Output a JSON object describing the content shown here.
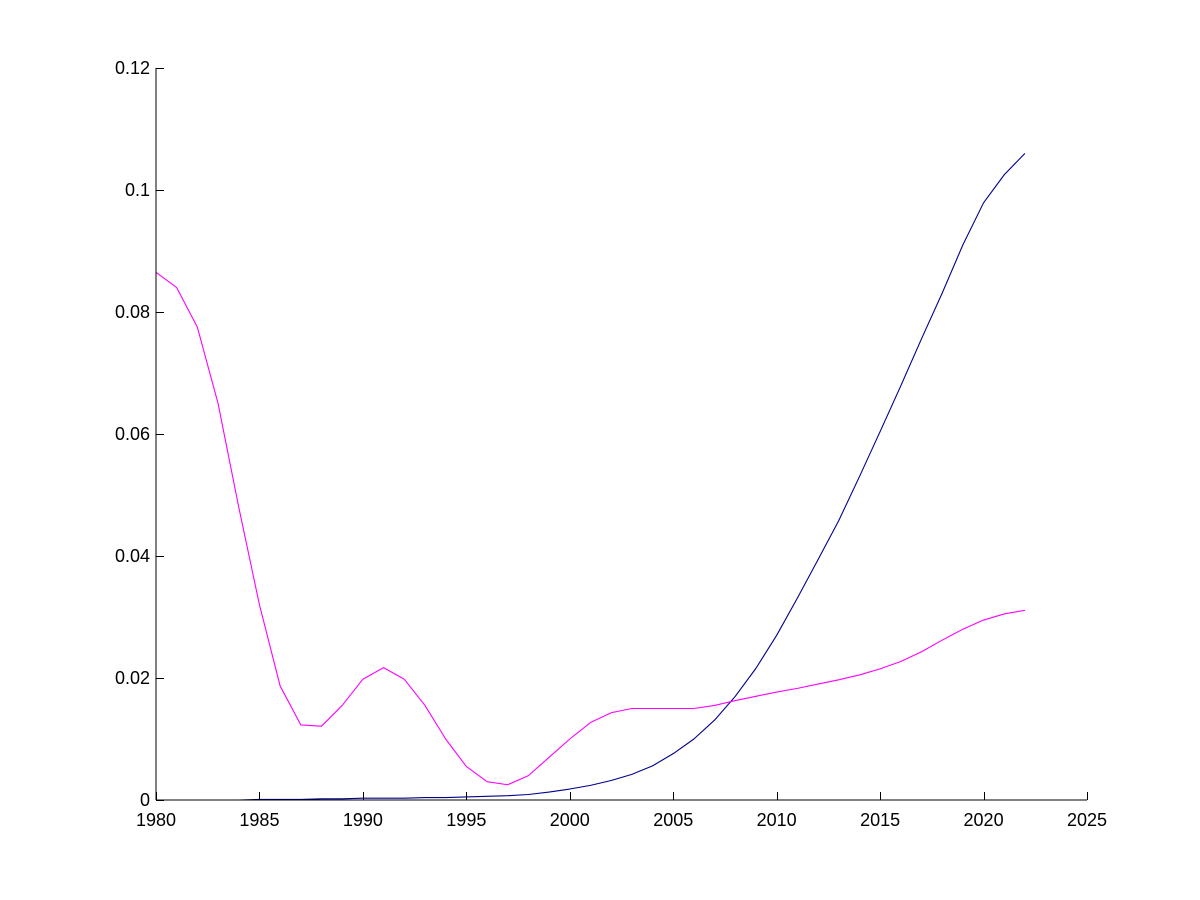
{
  "chart_data": {
    "type": "line",
    "title": "",
    "xlabel": "",
    "ylabel": "",
    "xlim": [
      1980,
      2025
    ],
    "ylim": [
      0,
      0.12
    ],
    "grid": false,
    "legend": "none",
    "x_ticks": [
      "1980",
      "1985",
      "1990",
      "1995",
      "2000",
      "2005",
      "2010",
      "2015",
      "2020",
      "2025"
    ],
    "y_ticks": [
      "0",
      "0.02",
      "0.04",
      "0.06",
      "0.08",
      "0.1",
      "0.12"
    ],
    "x_tick_values": [
      1980,
      1985,
      1990,
      1995,
      2000,
      2005,
      2010,
      2015,
      2020,
      2025
    ],
    "y_tick_values": [
      0,
      0.02,
      0.04,
      0.06,
      0.08,
      0.1,
      0.12
    ],
    "x": [
      1980,
      1981,
      1982,
      1983,
      1984,
      1985,
      1986,
      1987,
      1988,
      1989,
      1990,
      1991,
      1992,
      1993,
      1994,
      1995,
      1996,
      1997,
      1998,
      1999,
      2000,
      2001,
      2002,
      2003,
      2004,
      2005,
      2006,
      2007,
      2008,
      2009,
      2010,
      2011,
      2012,
      2013,
      2014,
      2015,
      2016,
      2017,
      2018,
      2019,
      2020,
      2021,
      2022
    ],
    "series": [
      {
        "color": "#00008b",
        "values": [
          0.0,
          0.0,
          0.0,
          0.0,
          0.0,
          0.0001,
          0.0001,
          0.0001,
          0.0002,
          0.0002,
          0.0003,
          0.0003,
          0.0003,
          0.0004,
          0.0004,
          0.0005,
          0.0006,
          0.0007,
          0.0009,
          0.0013,
          0.0018,
          0.0024,
          0.0032,
          0.0042,
          0.0056,
          0.0076,
          0.01,
          0.0131,
          0.017,
          0.0216,
          0.027,
          0.0331,
          0.0394,
          0.0458,
          0.053,
          0.0604,
          0.0679,
          0.0756,
          0.0831,
          0.091,
          0.0979,
          0.1025,
          0.106
        ]
      },
      {
        "color": "#ff00ff",
        "values": [
          0.0865,
          0.084,
          0.0775,
          0.065,
          0.048,
          0.032,
          0.0187,
          0.0123,
          0.0121,
          0.0155,
          0.0198,
          0.0217,
          0.0198,
          0.0155,
          0.01,
          0.0055,
          0.003,
          0.0025,
          0.004,
          0.007,
          0.01,
          0.0127,
          0.0143,
          0.015,
          0.015,
          0.015,
          0.015,
          0.0155,
          0.0163,
          0.017,
          0.0177,
          0.0183,
          0.019,
          0.0197,
          0.0205,
          0.0215,
          0.0227,
          0.0243,
          0.0262,
          0.028,
          0.0295,
          0.0305,
          0.0311
        ]
      }
    ]
  }
}
